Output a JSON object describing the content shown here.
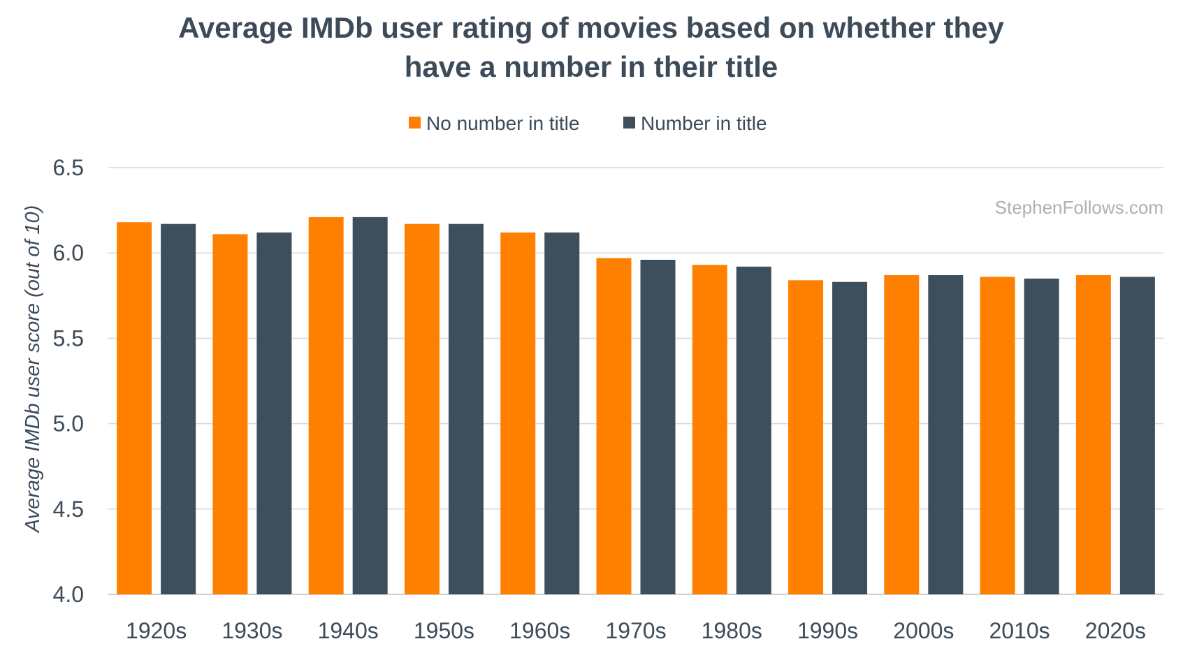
{
  "chart_data": {
    "type": "bar",
    "title": "Average IMDb user rating of movies based on whether they have a number in their title",
    "title_lines": [
      "Average IMDb user rating of movies based on whether they",
      "have a number in their title"
    ],
    "xlabel": "",
    "ylabel": "Average IMDb user score (out of 10)",
    "ylim": [
      4.0,
      6.5
    ],
    "yticks": [
      "4.0",
      "4.5",
      "5.0",
      "5.5",
      "6.0",
      "6.5"
    ],
    "grid": true,
    "legend_position": "top-center",
    "categories": [
      "1920s",
      "1930s",
      "1940s",
      "1950s",
      "1960s",
      "1970s",
      "1980s",
      "1990s",
      "2000s",
      "2010s",
      "2020s"
    ],
    "series": [
      {
        "name": "No number in title",
        "color": "#ff7f00",
        "values": [
          6.18,
          6.11,
          6.21,
          6.17,
          6.12,
          5.97,
          5.93,
          5.84,
          5.87,
          5.86,
          5.87
        ]
      },
      {
        "name": "Number in title",
        "color": "#3d4e5c",
        "values": [
          6.17,
          6.12,
          6.21,
          6.17,
          6.12,
          5.96,
          5.92,
          5.83,
          5.87,
          5.85,
          5.86
        ]
      }
    ],
    "watermark": "StephenFollows.com"
  },
  "colors": {
    "text": "#3d4b59",
    "grid": "#d9d9d9",
    "watermark": "#b0b0b0"
  }
}
